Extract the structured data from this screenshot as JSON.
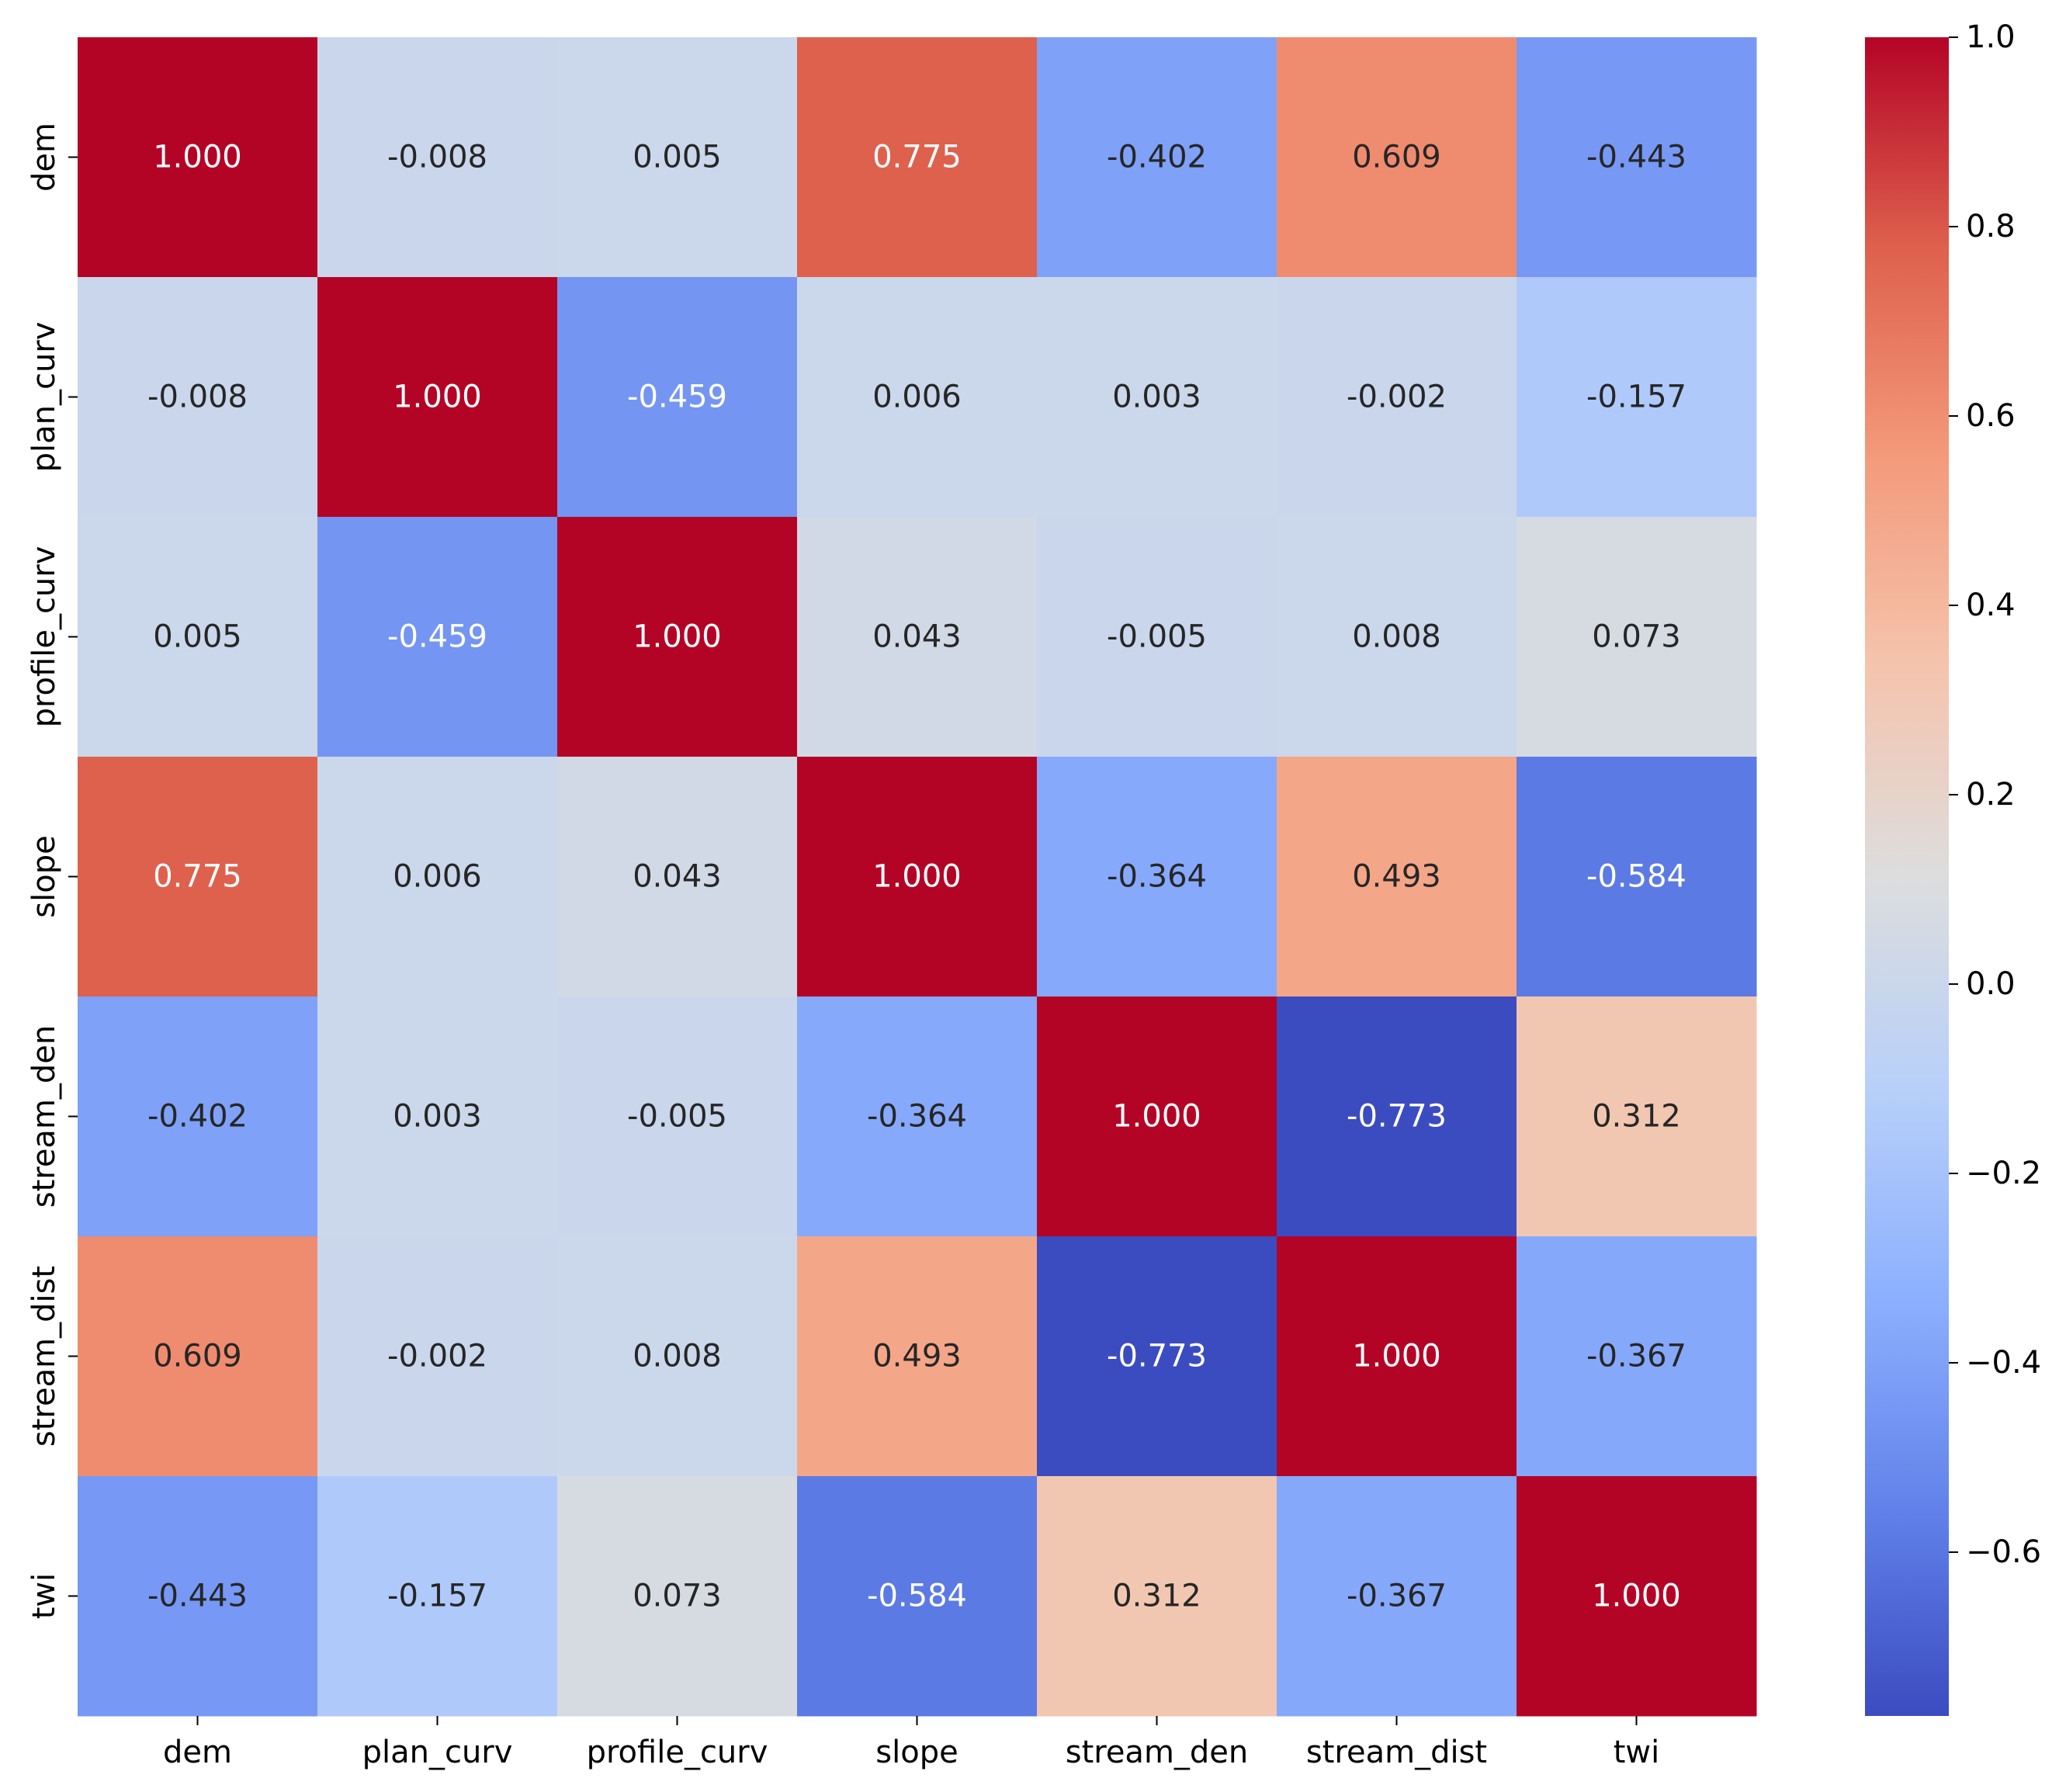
{
  "chart_data": {
    "type": "heatmap",
    "title": "",
    "xlabel": "",
    "ylabel": "",
    "x_categories": [
      "dem",
      "plan_curv",
      "profile_curv",
      "slope",
      "stream_den",
      "stream_dist",
      "twi"
    ],
    "y_categories": [
      "dem",
      "plan_curv",
      "profile_curv",
      "slope",
      "stream_den",
      "stream_dist",
      "twi"
    ],
    "values": [
      [
        1.0,
        -0.008,
        0.005,
        0.775,
        -0.402,
        0.609,
        -0.443
      ],
      [
        -0.008,
        1.0,
        -0.459,
        0.006,
        0.003,
        -0.002,
        -0.157
      ],
      [
        0.005,
        -0.459,
        1.0,
        0.043,
        -0.005,
        0.008,
        0.073
      ],
      [
        0.775,
        0.006,
        0.043,
        1.0,
        -0.364,
        0.493,
        -0.584
      ],
      [
        -0.402,
        0.003,
        -0.005,
        -0.364,
        1.0,
        -0.773,
        0.312
      ],
      [
        0.609,
        -0.002,
        0.008,
        0.493,
        -0.773,
        1.0,
        -0.367
      ],
      [
        -0.443,
        -0.157,
        0.073,
        -0.584,
        0.312,
        -0.367,
        1.0
      ]
    ],
    "cell_labels": [
      [
        "1.000",
        "-0.008",
        "0.005",
        "0.775",
        "-0.402",
        "0.609",
        "-0.443"
      ],
      [
        "-0.008",
        "1.000",
        "-0.459",
        "0.006",
        "0.003",
        "-0.002",
        "-0.157"
      ],
      [
        "0.005",
        "-0.459",
        "1.000",
        "0.043",
        "-0.005",
        "0.008",
        "0.073"
      ],
      [
        "0.775",
        "0.006",
        "0.043",
        "1.000",
        "-0.364",
        "0.493",
        "-0.584"
      ],
      [
        "-0.402",
        "0.003",
        "-0.005",
        "-0.364",
        "1.000",
        "-0.773",
        "0.312"
      ],
      [
        "0.609",
        "-0.002",
        "0.008",
        "0.493",
        "-0.773",
        "1.000",
        "-0.367"
      ],
      [
        "-0.443",
        "-0.157",
        "0.073",
        "-0.584",
        "0.312",
        "-0.367",
        "1.000"
      ]
    ],
    "colormap": "coolwarm",
    "colorbar": {
      "vmin": -0.773,
      "vmax": 1.0,
      "ticks": [
        1.0,
        0.8,
        0.6,
        0.4,
        0.2,
        0.0,
        -0.2,
        -0.4,
        -0.6
      ],
      "tick_labels": [
        "1.0",
        "0.8",
        "0.6",
        "0.4",
        "0.2",
        "0.0",
        "−0.2",
        "−0.4",
        "−0.6"
      ]
    },
    "grid": false,
    "legend": "colorbar-right"
  }
}
